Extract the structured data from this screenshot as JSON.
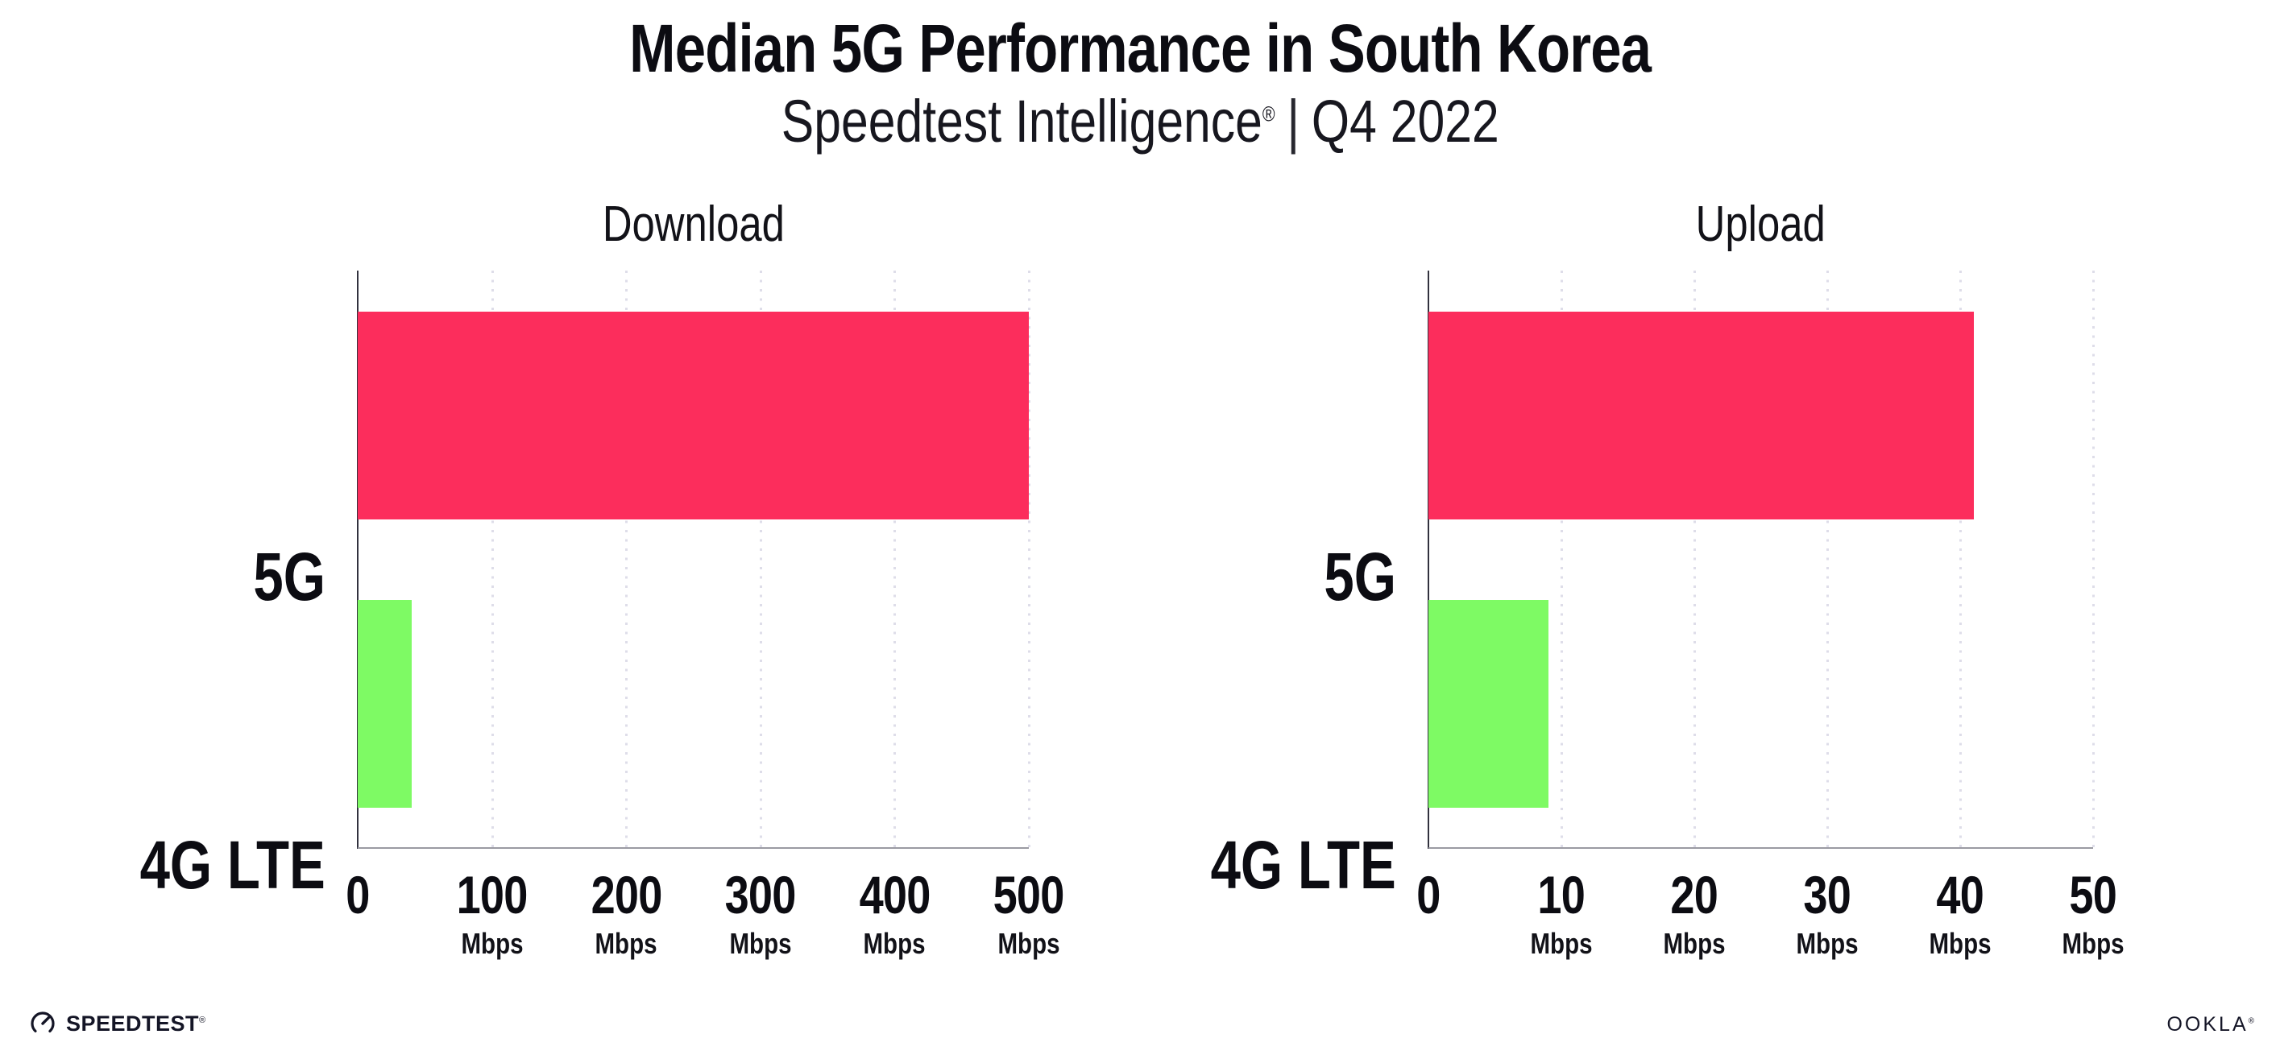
{
  "header": {
    "title": "Median 5G Performance in South Korea",
    "subtitle_brand": "Speedtest Intelligence",
    "subtitle_reg": "®",
    "subtitle_sep": "|",
    "subtitle_period": "Q4 2022"
  },
  "chart_data": [
    {
      "type": "bar",
      "orientation": "horizontal",
      "title": "Download",
      "categories": [
        "5G",
        "4G LTE"
      ],
      "values": [
        500,
        40
      ],
      "unit": "Mbps",
      "xlim": [
        0,
        500
      ],
      "ticks": [
        0,
        100,
        200,
        300,
        400,
        500
      ],
      "grid": "dotted-vertical",
      "legend": "none",
      "bar_colors": [
        "#fc2d5c",
        "#7efa64"
      ]
    },
    {
      "type": "bar",
      "orientation": "horizontal",
      "title": "Upload",
      "categories": [
        "5G",
        "4G LTE"
      ],
      "values": [
        41,
        9
      ],
      "unit": "Mbps",
      "xlim": [
        0,
        50
      ],
      "ticks": [
        0,
        10,
        20,
        30,
        40,
        50
      ],
      "grid": "dotted-vertical",
      "legend": "none",
      "bar_colors": [
        "#fc2d5c",
        "#7efa64"
      ]
    }
  ],
  "colors": {
    "bar_5g": "#fc2d5c",
    "bar_4g_lte": "#7efa64",
    "grid_dot": "#dedde9",
    "y_axis_line": "#32323e",
    "baseline": "#9a9aa2",
    "text": "#0c0c12"
  },
  "footer": {
    "speedtest_logo_text": "SPEEDTEST",
    "speedtest_mark": "®",
    "ookla_logo_text": "OOKLA",
    "ookla_mark": "®"
  }
}
